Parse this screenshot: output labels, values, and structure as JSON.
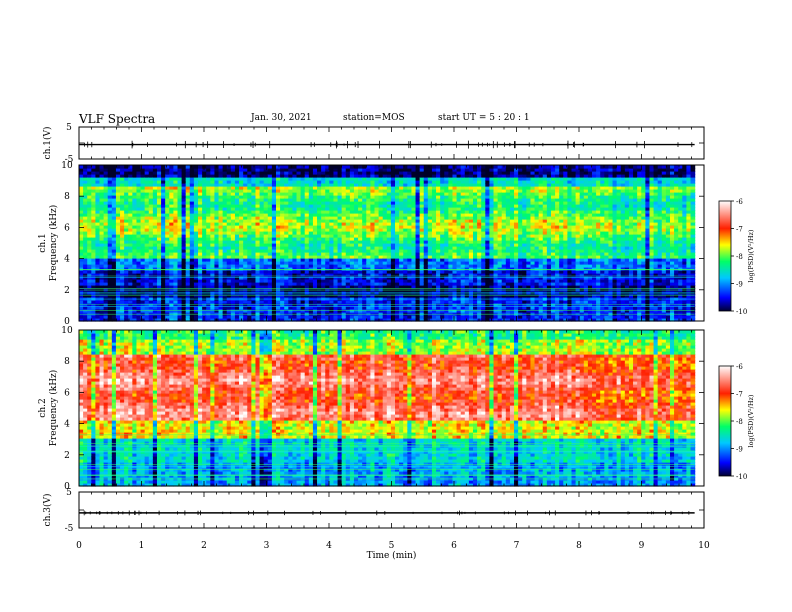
{
  "header": {
    "title": "VLF Spectra",
    "date": "Jan. 30, 2021",
    "station": "station=MOS",
    "start_ut": "start  UT =   5 : 20 : 1"
  },
  "chart_data": [
    {
      "type": "line",
      "name": "ch1-waveform",
      "ylabel": "ch.1(V)",
      "ylim": [
        -5,
        5
      ],
      "yticks": [
        "5",
        "-5"
      ],
      "xlim": [
        0,
        10
      ]
    },
    {
      "type": "heatmap",
      "name": "ch1-spectrogram",
      "ylabel_line1": "ch.1",
      "ylabel_line2": "Frequency (kHz)",
      "ylim": [
        0,
        10
      ],
      "yticks": [
        "0",
        "2",
        "4",
        "6",
        "8",
        "10"
      ],
      "data_end_min": 9.85,
      "mode_change_min": 7.95,
      "colorbar": {
        "label": "log(PSD)(V²/Hz)",
        "range": [
          -10,
          -6
        ],
        "ticks": [
          "-6",
          "-7",
          "-8",
          "-9",
          "-10"
        ]
      }
    },
    {
      "type": "heatmap",
      "name": "ch2-spectrogram",
      "ylabel_line1": "ch.2",
      "ylabel_line2": "Frequency (kHz)",
      "ylim": [
        0,
        10
      ],
      "yticks": [
        "0",
        "2",
        "4",
        "6",
        "8",
        "10"
      ],
      "data_end_min": 9.85,
      "mode_change_min": 7.95,
      "colorbar": {
        "label": "log(PSD)(V²/Hz)",
        "range": [
          -10,
          -6
        ],
        "ticks": [
          "-6",
          "-7",
          "-8",
          "-9",
          "-10"
        ]
      }
    },
    {
      "type": "line",
      "name": "ch3-waveform",
      "ylabel": "ch.3(V)",
      "ylim": [
        -5,
        5
      ],
      "yticks": [
        "5",
        "-5"
      ],
      "xlim": [
        0,
        10
      ]
    }
  ],
  "xaxis": {
    "label": "Time (min)",
    "range": [
      0,
      10
    ],
    "ticks": [
      "0",
      "1",
      "2",
      "3",
      "4",
      "5",
      "6",
      "7",
      "8",
      "9",
      "10"
    ]
  }
}
